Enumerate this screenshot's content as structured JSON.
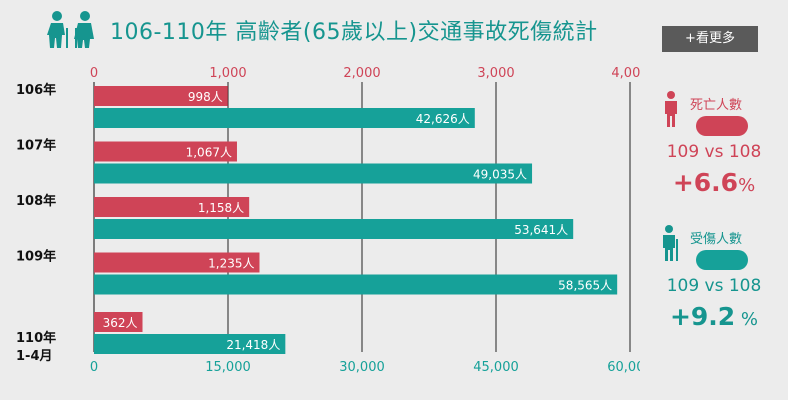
{
  "header": {
    "title": "106-110年 高齡者(65歲以上)交通事故死傷統計",
    "more_label": "+看更多"
  },
  "colors": {
    "deaths": "#cf4457",
    "injuries": "#16a199",
    "title": "#16958f",
    "button": "#5a5a5a"
  },
  "chart_data": {
    "type": "bar",
    "orientation": "horizontal",
    "categories": [
      "106年",
      "107年",
      "108年",
      "109年",
      "110年\n1-4月"
    ],
    "series": [
      {
        "name": "死亡人數",
        "axis": "top",
        "values": [
          998,
          1067,
          1158,
          1235,
          362
        ],
        "labels": [
          "998人",
          "1,067人",
          "1,158人",
          "1,235人",
          "362人"
        ]
      },
      {
        "name": "受傷人數",
        "axis": "bottom",
        "values": [
          42626,
          49035,
          53641,
          58565,
          21418
        ],
        "labels": [
          "42,626人",
          "49,035人",
          "53,641人",
          "58,565人",
          "21,418人"
        ]
      }
    ],
    "top_axis": {
      "range": [
        0,
        4000
      ],
      "ticks": [
        "0",
        "1,000",
        "2,000",
        "3,000",
        "4,000"
      ]
    },
    "bottom_axis": {
      "range": [
        0,
        60000
      ],
      "ticks": [
        "0",
        "15,000",
        "30,000",
        "45,000",
        "60,000"
      ]
    },
    "grid": true
  },
  "stats": {
    "deaths": {
      "label": "死亡人數",
      "comparison": "109 vs 108",
      "change": "+6.6",
      "unit": "%"
    },
    "injuries": {
      "label": "受傷人數",
      "comparison": "109 vs 108",
      "change": "+9.2",
      "unit": " %"
    }
  }
}
